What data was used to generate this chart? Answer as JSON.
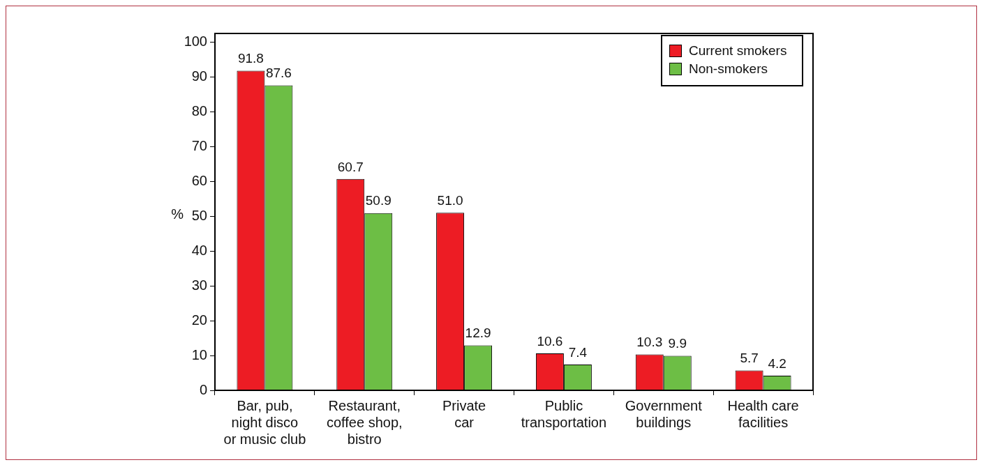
{
  "chart_data": {
    "type": "bar",
    "ylabel": "%",
    "categories": [
      "Bar, pub,\nnight disco\nor music club",
      "Restaurant,\ncoffee shop,\nbistro",
      "Private\ncar",
      "Public\ntransportation",
      "Government\nbuildings",
      "Health care\nfacilities"
    ],
    "series": [
      {
        "name": "Current smokers",
        "color": "#ed1c24",
        "values": [
          91.8,
          60.7,
          51.0,
          10.6,
          10.3,
          5.7
        ],
        "value_labels": [
          "91.8",
          "60.7",
          "51.0",
          "10.6",
          "10.3",
          "5.7"
        ]
      },
      {
        "name": "Non-smokers",
        "color": "#6dbe45",
        "values": [
          87.6,
          50.9,
          12.9,
          7.4,
          9.9,
          4.2
        ],
        "value_labels": [
          "87.6",
          "50.9",
          "12.9",
          "7.4",
          "9.9",
          "4.2"
        ]
      }
    ],
    "ylim": [
      0,
      102.5
    ],
    "yticks": [
      0,
      10,
      20,
      30,
      40,
      50,
      60,
      70,
      80,
      90,
      100
    ],
    "grid": false,
    "legend": "top right"
  }
}
